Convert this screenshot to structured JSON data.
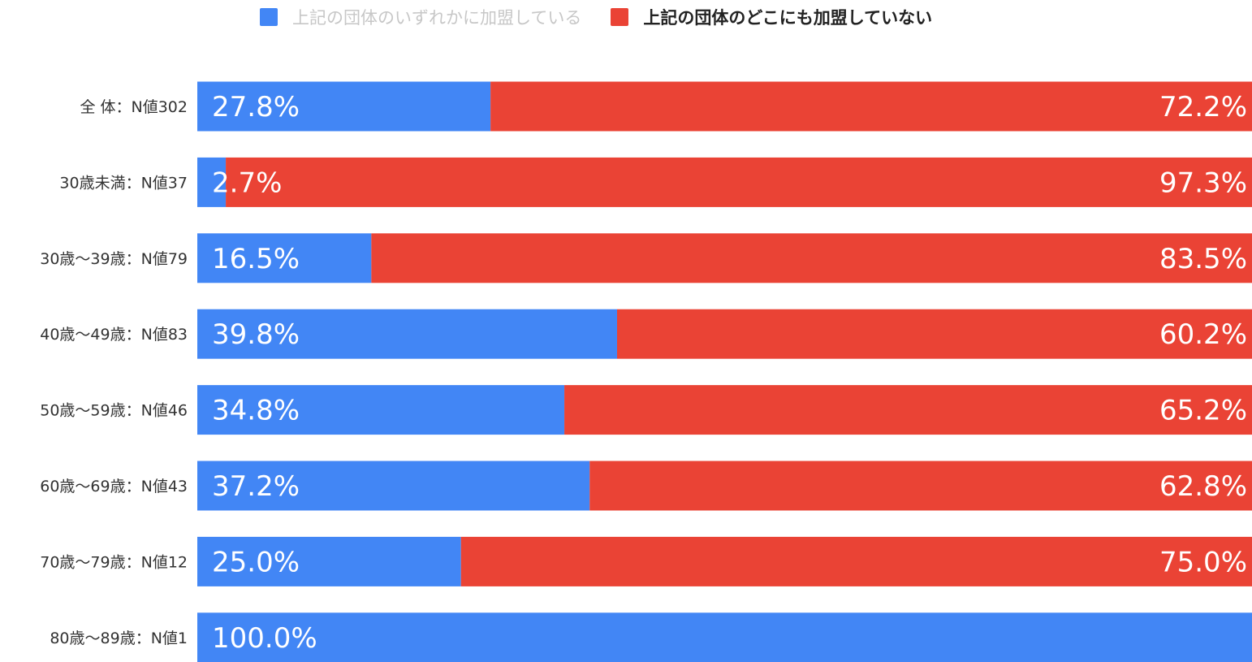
{
  "legend": {
    "items": [
      {
        "label": "上記の団体のいずれかに加盟している",
        "color": "#4286f5",
        "state": "inactive"
      },
      {
        "label": "上記の団体のどこにも加盟していない",
        "color": "#ea4335",
        "state": "active"
      }
    ]
  },
  "chart_data": {
    "type": "bar",
    "orientation": "horizontal",
    "stacked": true,
    "percent": true,
    "categories": [
      "全 体：N値302",
      "30歳未満：N値37",
      "30歳～39歳：N値79",
      "40歳～49歳：N値83",
      "50歳～59歳：N値46",
      "60歳～69歳：N値43",
      "70歳～79歳：N値12",
      "80歳～89歳：N値1"
    ],
    "series": [
      {
        "name": "上記の団体のいずれかに加盟している",
        "color": "#4286f5",
        "values": [
          27.8,
          2.7,
          16.5,
          39.8,
          34.8,
          37.2,
          25.0,
          100.0
        ],
        "labels": [
          "27.8%",
          "2.7%",
          "16.5%",
          "39.8%",
          "34.8%",
          "37.2%",
          "25.0%",
          "100.0%"
        ]
      },
      {
        "name": "上記の団体のどこにも加盟していない",
        "color": "#ea4335",
        "values": [
          72.2,
          97.3,
          83.5,
          60.2,
          65.2,
          62.8,
          75.0,
          0
        ],
        "labels": [
          "72.2%",
          "97.3%",
          "83.5%",
          "60.2%",
          "65.2%",
          "62.8%",
          "75.0%",
          ""
        ]
      }
    ],
    "xlim": [
      0,
      100
    ],
    "grid": false,
    "legend_position": "top"
  }
}
